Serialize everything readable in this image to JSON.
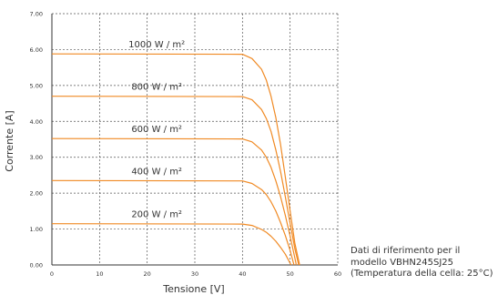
{
  "colors": {
    "curve": "#f08a24",
    "axis": "#333333",
    "grid": "#555555",
    "text": "#333333"
  },
  "note": {
    "line1": "Dati di riferimento per il",
    "line2": "modello VBHN245SJ25",
    "line3": "(Temperatura della cella: 25°C)"
  },
  "chart_data": {
    "type": "line",
    "xlabel": "Tensione [V]",
    "ylabel": "Corrente [A]",
    "xlim": [
      0,
      60
    ],
    "ylim": [
      0,
      7
    ],
    "xticks": [
      0,
      10,
      20,
      30,
      40,
      50,
      60
    ],
    "yticks": [
      "0.00",
      "1.00",
      "2.00",
      "3.00",
      "4.00",
      "5.00",
      "6.00",
      "7.00"
    ],
    "grid": true,
    "series": [
      {
        "name": "1000 W / m²",
        "x": [
          0,
          40,
          42,
          44,
          45,
          46,
          47,
          48,
          49,
          50,
          51,
          52
        ],
        "y": [
          5.88,
          5.87,
          5.75,
          5.45,
          5.15,
          4.7,
          4.1,
          3.35,
          2.45,
          1.5,
          0.6,
          0
        ]
      },
      {
        "name": "800 W / m²",
        "x": [
          0,
          40,
          42,
          44,
          45,
          46,
          47,
          48,
          49,
          50,
          51,
          51.8
        ],
        "y": [
          4.7,
          4.69,
          4.6,
          4.33,
          4.08,
          3.72,
          3.2,
          2.6,
          1.9,
          1.15,
          0.45,
          0
        ]
      },
      {
        "name": "600 W / m²",
        "x": [
          0,
          40,
          42,
          44,
          45,
          46,
          47,
          48,
          49,
          50,
          51.3
        ],
        "y": [
          3.52,
          3.51,
          3.43,
          3.2,
          3.0,
          2.72,
          2.34,
          1.9,
          1.38,
          0.8,
          0
        ]
      },
      {
        "name": "400 W / m²",
        "x": [
          0,
          40,
          42,
          44,
          45,
          46,
          47,
          48,
          49,
          50,
          50.8
        ],
        "y": [
          2.35,
          2.34,
          2.27,
          2.1,
          1.96,
          1.76,
          1.5,
          1.18,
          0.82,
          0.4,
          0
        ]
      },
      {
        "name": "200 W / m²",
        "x": [
          0,
          40,
          42,
          44,
          45,
          46,
          47,
          48,
          49,
          50.2
        ],
        "y": [
          1.15,
          1.14,
          1.1,
          0.99,
          0.91,
          0.8,
          0.66,
          0.49,
          0.3,
          0
        ]
      }
    ],
    "labels_at_x": [
      22,
      22,
      22,
      22,
      22
    ]
  }
}
